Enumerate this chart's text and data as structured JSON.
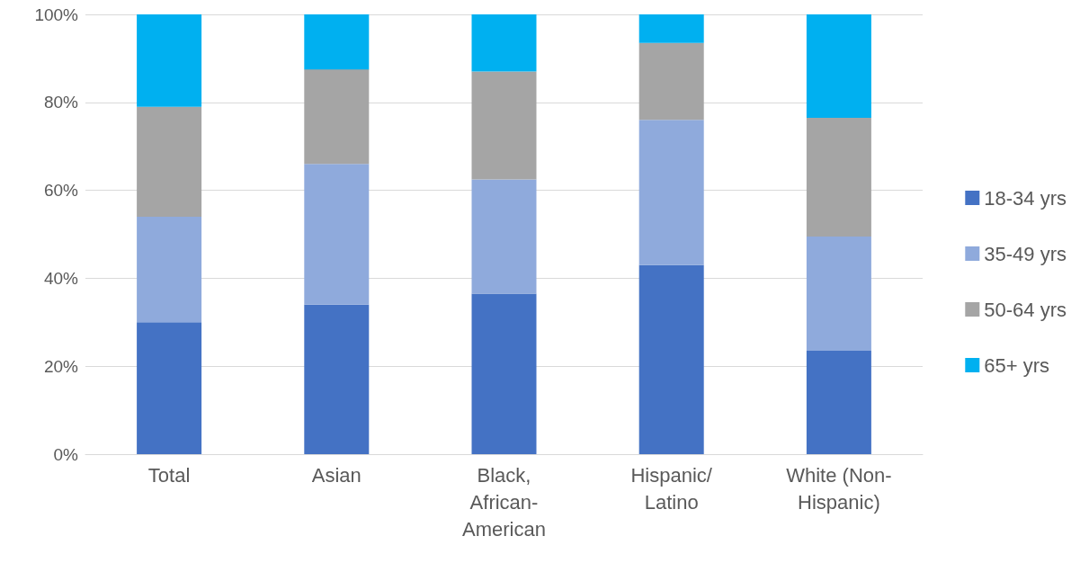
{
  "chart_data": {
    "type": "bar",
    "stacked": true,
    "categories": [
      "Total",
      "Asian",
      "Black, African-American",
      "Hispanic/Latino",
      "White (Non-Hispanic)"
    ],
    "series": [
      {
        "name": "18-34 yrs",
        "color": "#4472c4",
        "values": [
          30,
          34,
          36.5,
          43,
          23.5
        ]
      },
      {
        "name": "35-49 yrs",
        "color": "#8faadc",
        "values": [
          24,
          32,
          26,
          33,
          26
        ]
      },
      {
        "name": "50-64 yrs",
        "color": "#a5a5a5",
        "values": [
          25,
          21.5,
          24.5,
          17.5,
          27
        ]
      },
      {
        "name": "65+ yrs",
        "color": "#00b0f0",
        "values": [
          21,
          12.5,
          13,
          6.5,
          23.5
        ]
      }
    ],
    "ylim": [
      0,
      100
    ],
    "yticks": [
      {
        "value": 0,
        "label": "0%"
      },
      {
        "value": 20,
        "label": "20%"
      },
      {
        "value": 40,
        "label": "40%"
      },
      {
        "value": 60,
        "label": "60%"
      },
      {
        "value": 80,
        "label": "80%"
      },
      {
        "value": 100,
        "label": "100%"
      }
    ],
    "grid": "y",
    "legend": "right"
  }
}
